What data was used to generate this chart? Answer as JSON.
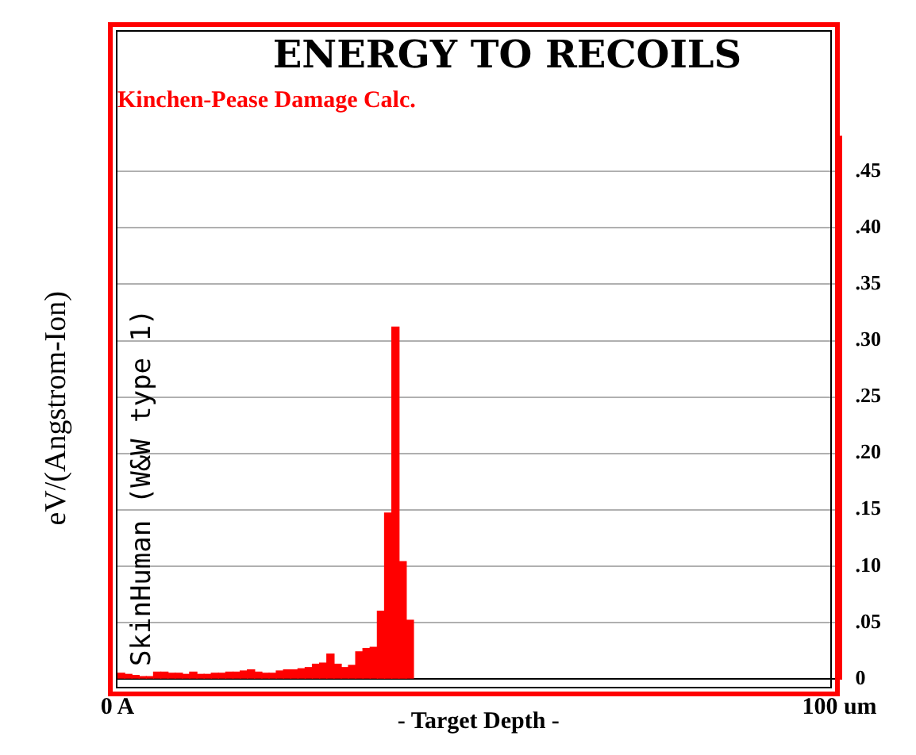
{
  "chart_data": {
    "type": "histogram",
    "title": "ENERGY TO RECOILS",
    "subtitle": "Kinchen-Pease Damage Calc.",
    "xlabel": "- Target Depth -",
    "ylabel": "eV/(Angstrom-Ion)",
    "annotations": [
      "SkinHuman (W&W type 1)"
    ],
    "bins": [
      0,
      1,
      2,
      3,
      4,
      5,
      6,
      7,
      8,
      9,
      10,
      11,
      12,
      13,
      14,
      15,
      16,
      17,
      18,
      19,
      20,
      21,
      22,
      23,
      24,
      25,
      26,
      27,
      28,
      29,
      30,
      31,
      32,
      33,
      34,
      35,
      36,
      37,
      38,
      39,
      40,
      41
    ],
    "values": [
      0.005,
      0.004,
      0.003,
      0.002,
      0.002,
      0.006,
      0.006,
      0.005,
      0.005,
      0.004,
      0.006,
      0.004,
      0.004,
      0.005,
      0.005,
      0.006,
      0.006,
      0.007,
      0.008,
      0.006,
      0.005,
      0.005,
      0.007,
      0.008,
      0.008,
      0.009,
      0.01,
      0.013,
      0.014,
      0.022,
      0.013,
      0.01,
      0.012,
      0.024,
      0.027,
      0.028,
      0.06,
      0.147,
      0.312,
      0.104,
      0.052
    ],
    "color": "#ff0000",
    "xlim": [
      0,
      100
    ],
    "xticks": [
      {
        "value": 0,
        "label": "0 A"
      },
      {
        "value": 100,
        "label": "100 um"
      }
    ],
    "ylim": [
      0,
      0.48
    ],
    "yticks": [
      {
        "value": 0,
        "label": "0"
      },
      {
        "value": 0.05,
        "label": ".05"
      },
      {
        "value": 0.1,
        "label": ".10"
      },
      {
        "value": 0.15,
        "label": ".15"
      },
      {
        "value": 0.2,
        "label": ".20"
      },
      {
        "value": 0.25,
        "label": ".25"
      },
      {
        "value": 0.3,
        "label": ".30"
      },
      {
        "value": 0.35,
        "label": ".35"
      },
      {
        "value": 0.4,
        "label": ".40"
      },
      {
        "value": 0.45,
        "label": ".45"
      }
    ],
    "grid": "y",
    "legend": false
  }
}
